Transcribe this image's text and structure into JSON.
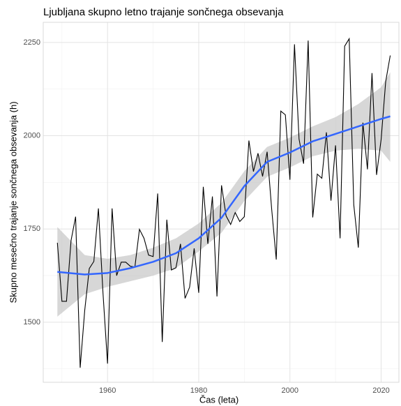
{
  "chart_data": {
    "type": "line",
    "title": "Ljubljana skupno letno trajanje sončnega obsevanja",
    "xlabel": "Čas (leta)",
    "ylabel": "Skupno mesečno trajanje sončnega obsevanja (h)",
    "xlim": [
      1945.9,
      2023.9
    ],
    "ylim": [
      1339,
      2304
    ],
    "xticks": [
      1960,
      1980,
      2000,
      2020
    ],
    "yticks": [
      1500,
      1750,
      2000,
      2250
    ],
    "xminor": [
      1950,
      1970,
      1990,
      2010
    ],
    "yminor": [
      1375,
      1625,
      1875,
      2125
    ],
    "grid": true,
    "x": [
      1949,
      1950,
      1951,
      1952,
      1953,
      1954,
      1955,
      1956,
      1957,
      1958,
      1959,
      1960,
      1961,
      1962,
      1963,
      1964,
      1965,
      1966,
      1967,
      1968,
      1969,
      1970,
      1971,
      1972,
      1973,
      1974,
      1975,
      1976,
      1977,
      1978,
      1979,
      1980,
      1981,
      1982,
      1983,
      1984,
      1985,
      1986,
      1987,
      1988,
      1989,
      1990,
      1991,
      1992,
      1993,
      1994,
      1995,
      1996,
      1997,
      1998,
      1999,
      2000,
      2001,
      2002,
      2003,
      2004,
      2005,
      2006,
      2007,
      2008,
      2009,
      2010,
      2011,
      2012,
      2013,
      2014,
      2015,
      2016,
      2017,
      2018,
      2019,
      2020,
      2021,
      2022
    ],
    "series": [
      {
        "color": "#000000",
        "values": [
          1713,
          1556,
          1556,
          1719,
          1783,
          1378,
          1532,
          1644,
          1663,
          1805,
          1579,
          1389,
          1805,
          1625,
          1661,
          1661,
          1650,
          1648,
          1749,
          1725,
          1680,
          1676,
          1845,
          1447,
          1775,
          1640,
          1646,
          1710,
          1564,
          1594,
          1698,
          1579,
          1863,
          1710,
          1837,
          1569,
          1867,
          1785,
          1762,
          1794,
          1770,
          1783,
          1987,
          1904,
          1953,
          1891,
          1957,
          1803,
          1668,
          2066,
          2056,
          1882,
          2245,
          1991,
          1925,
          2255,
          1781,
          1897,
          1886,
          2009,
          1826,
          1974,
          1725,
          2240,
          2260,
          1815,
          1700,
          2035,
          1910,
          2168,
          1895,
          1990,
          2145,
          2215
        ]
      }
    ],
    "smooth": {
      "color": "#3366ff",
      "band_color": "#bdbdbd",
      "x": [
        1949,
        1955,
        1960,
        1965,
        1970,
        1975,
        1980,
        1985,
        1990,
        1995,
        2000,
        2005,
        2010,
        2015,
        2020,
        2022
      ],
      "values": [
        1635,
        1628,
        1632,
        1645,
        1662,
        1685,
        1725,
        1780,
        1865,
        1930,
        1955,
        1985,
        2005,
        2025,
        2045,
        2052
      ],
      "lower": [
        1515,
        1575,
        1595,
        1610,
        1625,
        1645,
        1690,
        1740,
        1825,
        1890,
        1915,
        1945,
        1960,
        1965,
        1960,
        1930
      ],
      "upper": [
        1755,
        1680,
        1670,
        1680,
        1700,
        1725,
        1765,
        1820,
        1905,
        1970,
        1995,
        2025,
        2050,
        2085,
        2130,
        2170
      ]
    }
  }
}
